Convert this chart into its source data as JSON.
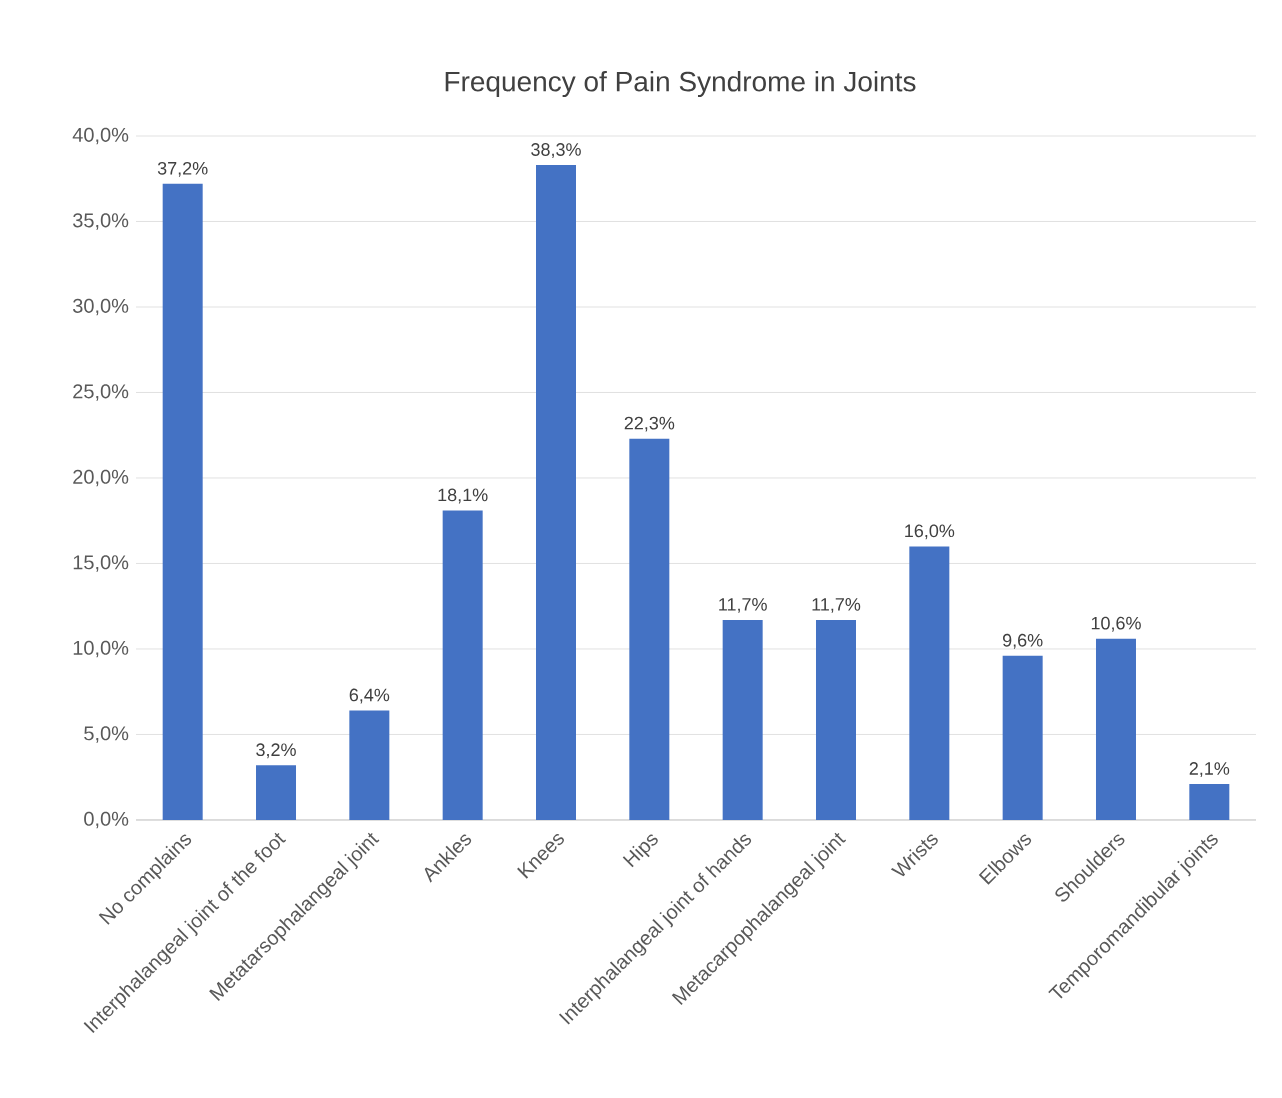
{
  "chart_data": {
    "type": "bar",
    "title": "Frequency of Pain Syndrome in Joints",
    "categories": [
      "No complains",
      "Interphalangeal joint of the foot",
      "Metatarsophalangeal joint",
      "Ankles",
      "Knees",
      "Hips",
      "Interphalangeal joint of  hands",
      "Metacarpophalangeal joint",
      "Wrists",
      "Elbows",
      "Shoulders",
      "Temporomandibular joints"
    ],
    "values": [
      37.2,
      3.2,
      6.4,
      18.1,
      38.3,
      22.3,
      11.7,
      11.7,
      16.0,
      9.6,
      10.6,
      2.1
    ],
    "value_labels": [
      "37,2%",
      "3,2%",
      "6,4%",
      "18,1%",
      "38,3%",
      "22,3%",
      "11,7%",
      "11,7%",
      "16,0%",
      "9,6%",
      "10,6%",
      "2,1%"
    ],
    "color": "#4472c4",
    "ylim": [
      0,
      40
    ],
    "yticks": [
      {
        "value": 0,
        "label": "0,0%"
      },
      {
        "value": 5,
        "label": "5,0%"
      },
      {
        "value": 10,
        "label": "10,0%"
      },
      {
        "value": 15,
        "label": "15,0%"
      },
      {
        "value": 20,
        "label": "20,0%"
      },
      {
        "value": 25,
        "label": "25,0%"
      },
      {
        "value": 30,
        "label": "30,0%"
      },
      {
        "value": 35,
        "label": "35,0%"
      },
      {
        "value": 40,
        "label": "40,0%"
      }
    ],
    "grid": "y"
  }
}
